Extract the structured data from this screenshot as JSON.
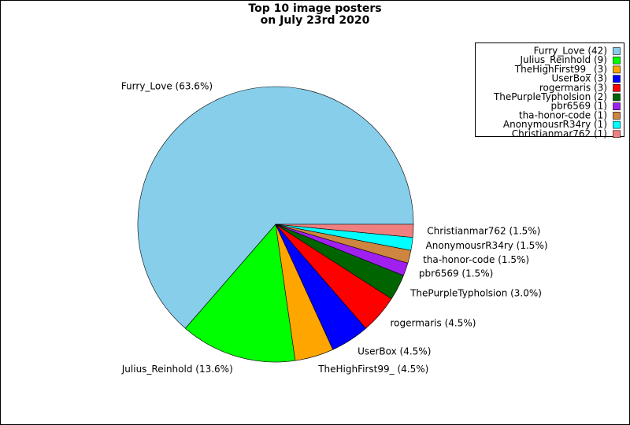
{
  "chart_data": {
    "type": "pie",
    "title": "Top 10 image posters",
    "subtitle": "on July 23rd 2020",
    "categories": [
      "Furry_Love",
      "Julius_Reinhold",
      "TheHighFirst99_",
      "UserBox",
      "rogermaris",
      "ThePurpleTypholsion",
      "pbr6569",
      "tha-honor-code",
      "AnonymousrR34ry",
      "Christianmar762"
    ],
    "values": [
      42,
      9,
      3,
      3,
      3,
      2,
      1,
      1,
      1,
      1
    ],
    "slice_labels": [
      "Furry_Love (63.6%)",
      "Julius_Reinhold (13.6%)",
      "TheHighFirst99_ (4.5%)",
      "UserBox (4.5%)",
      "rogermaris (4.5%)",
      "ThePurpleTypholsion (3.0%)",
      "pbr6569 (1.5%)",
      "tha-honor-code (1.5%)",
      "AnonymousrR34ry (1.5%)",
      "Christianmar762 (1.5%)"
    ],
    "legend_labels": [
      "Furry_Love (42)",
      "Julius_Reinhold (9)",
      "TheHighFirst99_ (3)",
      "UserBox (3)",
      "rogermaris (3)",
      "ThePurpleTypholsion (2)",
      "pbr6569 (1)",
      "tha-honor-code (1)",
      "AnonymousrR34ry (1)",
      "Christianmar762 (1)"
    ],
    "colors": [
      "#87ceeb",
      "#00ff00",
      "#ffa500",
      "#0000ff",
      "#ff0000",
      "#006400",
      "#a020f0",
      "#cd853f",
      "#00ffff",
      "#f08080"
    ],
    "legend": "upper right"
  }
}
